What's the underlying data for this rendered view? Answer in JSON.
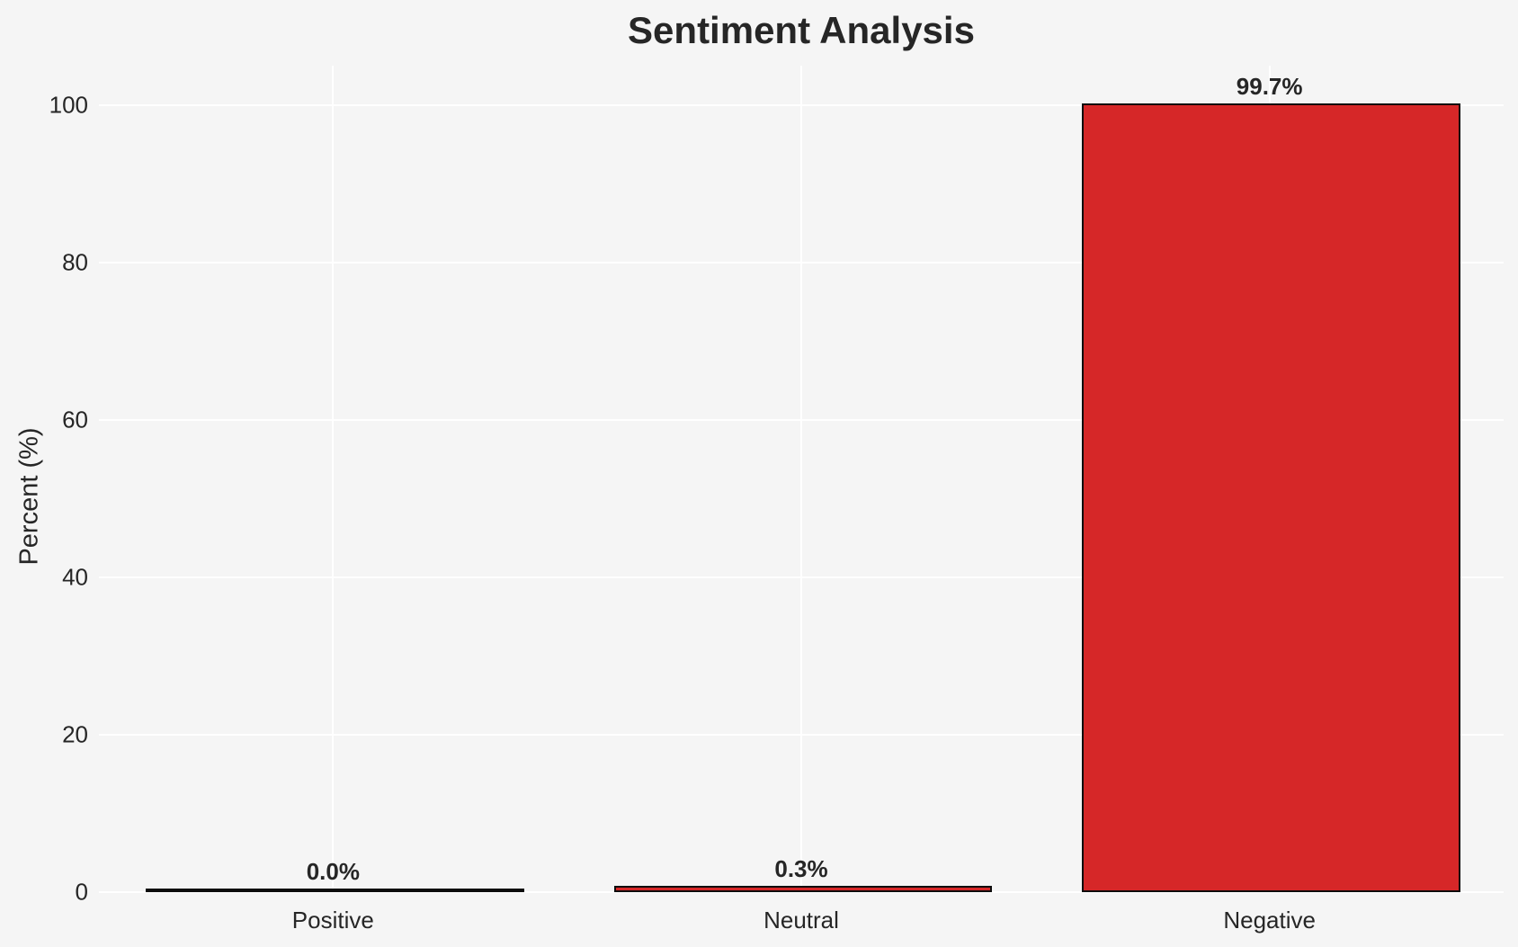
{
  "chart_data": {
    "type": "bar",
    "title": "Sentiment Analysis",
    "xlabel": "",
    "ylabel": "Percent (%)",
    "categories": [
      "Positive",
      "Neutral",
      "Negative"
    ],
    "values": [
      0.0,
      0.3,
      99.7
    ],
    "value_labels": [
      "0.0%",
      "0.3%",
      "99.7%"
    ],
    "yticks": [
      0,
      20,
      40,
      60,
      80,
      100
    ],
    "ytick_labels": [
      "0",
      "20",
      "40",
      "60",
      "80",
      "100"
    ],
    "ylim": [
      0,
      105
    ],
    "bar_width_fraction": 0.8,
    "grid": "horizontal and vertical white gridlines, no axis spines",
    "legend": "none"
  },
  "colors": {
    "background": "#f5f5f5",
    "grid": "#ffffff",
    "bar_fill": "#d62728",
    "bar_edge": "#0d0d0d",
    "text": "#262626"
  }
}
